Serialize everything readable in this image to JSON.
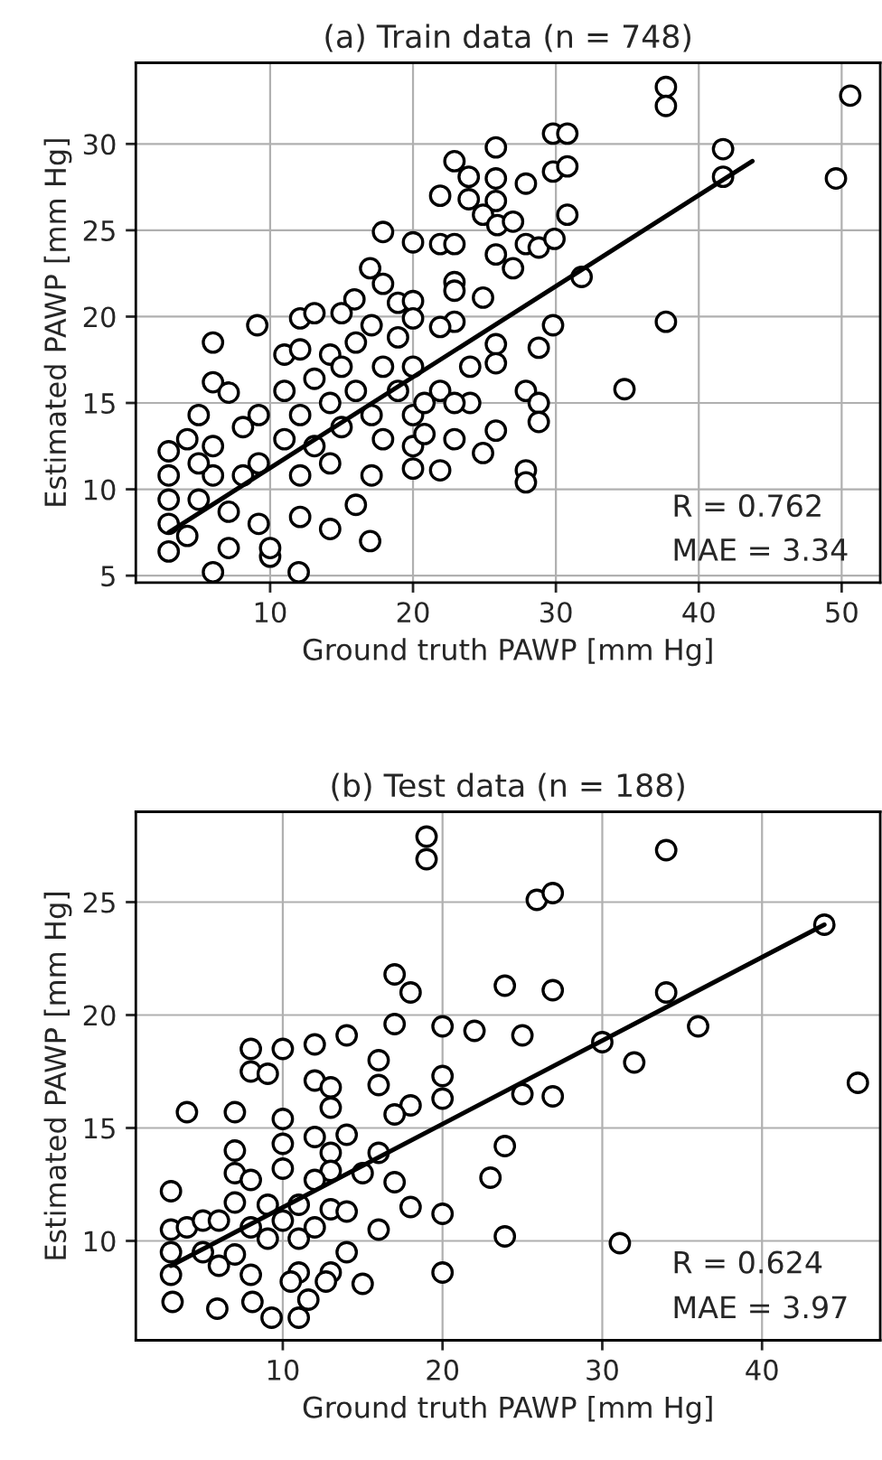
{
  "chart_data": [
    {
      "type": "scatter",
      "title": "(a) Train data (n = 748)",
      "xlabel": "Ground truth PAWP [mm Hg]",
      "ylabel": "Estimated PAWP [mm Hg]",
      "xlim": [
        0.6,
        52.7
      ],
      "ylim": [
        4.6,
        34.7
      ],
      "xticks": [
        10,
        20,
        30,
        40,
        50
      ],
      "yticks": [
        5,
        10,
        15,
        20,
        25,
        30
      ],
      "grid": true,
      "annotations": [
        "R = 0.762",
        "MAE = 3.34"
      ],
      "series": [
        {
          "marker": "circle",
          "color": "#ffffff",
          "x": [
            37.7,
            37.7,
            50.6,
            41.7,
            41.7,
            49.6,
            37.7,
            34.8,
            31.8,
            29.8,
            30.8,
            29.8,
            30.8,
            30.8,
            25.8,
            25.8,
            25.8,
            22.9,
            23.9,
            23.9,
            21.9,
            24.9,
            25.9,
            27.0,
            27.9,
            17.9,
            20.0,
            21.9,
            22.9,
            27.9,
            28.8,
            29.9,
            25.8,
            27.0,
            24.9,
            22.9,
            22.9,
            17.0,
            17.9,
            18.95,
            15.9,
            20.0,
            9.1,
            6.0,
            6.0,
            7.1,
            29.8,
            28.8,
            25.8,
            25.8,
            24.0,
            22.9,
            21.9,
            27.9,
            28.8,
            28.8,
            24.0,
            25.8,
            22.9,
            24.9,
            21.9,
            27.9,
            27.9,
            20.0,
            17.0,
            12.0,
            6.0,
            10.0,
            2.9,
            2.9,
            2.9,
            2.9,
            2.9,
            4.2,
            4.2,
            5.0,
            6.0,
            6.0,
            7.1,
            7.1,
            8.1,
            8.1,
            9.2,
            9.2,
            9.2,
            10.0,
            11.0,
            11.0,
            11.0,
            12.1,
            12.1,
            12.1,
            12.1,
            12.1,
            13.1,
            13.1,
            13.1,
            14.2,
            14.2,
            14.2,
            14.2,
            15.0,
            15.0,
            15.0,
            16.0,
            16.0,
            16.0,
            17.1,
            17.1,
            17.1,
            17.9,
            17.9,
            18.95,
            18.95,
            20.0,
            20.0,
            20.0,
            20.0,
            20.8,
            20.8,
            21.9,
            22.9,
            5.0,
            5.0
          ],
          "values": [
            33.3,
            32.2,
            32.8,
            29.7,
            28.1,
            28.0,
            19.7,
            15.8,
            22.3,
            30.6,
            30.6,
            28.4,
            28.7,
            25.9,
            29.8,
            28.0,
            26.7,
            29.0,
            28.1,
            26.8,
            27.0,
            25.9,
            25.3,
            25.5,
            27.7,
            24.9,
            24.3,
            24.2,
            24.2,
            24.2,
            24.0,
            24.5,
            23.6,
            22.8,
            21.1,
            22.0,
            21.5,
            22.8,
            21.9,
            20.8,
            21.0,
            20.9,
            19.5,
            18.5,
            16.2,
            15.6,
            19.5,
            18.2,
            18.4,
            17.3,
            17.1,
            19.7,
            19.4,
            15.7,
            15.0,
            13.9,
            15.0,
            13.4,
            12.9,
            12.1,
            11.1,
            11.1,
            10.4,
            11.2,
            7.0,
            5.2,
            5.2,
            6.1,
            12.2,
            10.8,
            9.4,
            8.0,
            6.4,
            12.9,
            7.3,
            9.4,
            12.5,
            10.8,
            8.7,
            6.6,
            13.6,
            10.8,
            14.3,
            11.5,
            8.0,
            6.6,
            17.8,
            15.7,
            12.9,
            19.9,
            18.1,
            14.3,
            10.8,
            8.4,
            20.2,
            16.4,
            12.5,
            17.8,
            15.0,
            11.5,
            7.7,
            20.2,
            17.1,
            13.6,
            9.1,
            18.5,
            15.7,
            19.5,
            14.3,
            10.8,
            17.1,
            12.9,
            18.8,
            15.7,
            19.9,
            17.1,
            14.3,
            12.5,
            15.0,
            13.2,
            15.7,
            15.0,
            14.3,
            11.5
          ]
        },
        {
          "type": "line",
          "color": "#000000",
          "x": [
            2.9,
            43.75
          ],
          "values": [
            7.5,
            29.0
          ]
        }
      ]
    },
    {
      "type": "scatter",
      "title": "(b) Test data (n = 188)",
      "xlabel": "Ground truth PAWP [mm Hg]",
      "ylabel": "Estimated PAWP [mm Hg]",
      "xlim": [
        0.8,
        47.4
      ],
      "ylim": [
        5.6,
        29.0
      ],
      "xticks": [
        10,
        20,
        30,
        40
      ],
      "yticks": [
        10,
        15,
        20,
        25
      ],
      "grid": true,
      "annotations": [
        "R = 0.624",
        "MAE = 3.97"
      ],
      "series": [
        {
          "marker": "circle",
          "color": "#ffffff",
          "x": [
            19.0,
            19.0,
            34.0,
            25.9,
            26.9,
            43.9,
            46.0,
            34.0,
            36.0,
            30.0,
            32.0,
            17.0,
            18.0,
            23.9,
            26.9,
            17.0,
            20.0,
            22.0,
            25.0,
            14.0,
            12.0,
            10.0,
            8.0,
            8.0,
            9.06,
            12.0,
            13.0,
            13.0,
            16.0,
            16.0,
            20.0,
            20.0,
            18.0,
            17.0,
            25.0,
            26.9,
            4.0,
            7.0,
            10.0,
            14.0,
            23.9,
            23.0,
            31.1,
            23.9,
            20.0,
            20.0,
            18.0,
            16.0,
            17.0,
            16.0,
            15.0,
            3.0,
            7.0,
            7.0,
            8.0,
            10.0,
            10.0,
            12.0,
            13.0,
            13.0,
            12.0,
            7.0,
            9.06,
            11.0,
            13.0,
            14.0,
            3.0,
            4.0,
            5.0,
            6.0,
            8.0,
            10.0,
            11.0,
            14.0,
            3.0,
            5.0,
            7.0,
            9.06,
            12.0,
            3.0,
            6.0,
            8.0,
            11.0,
            13.0,
            15.0,
            3.1,
            5.9,
            8.1,
            9.3,
            10.5,
            11.6,
            12.7,
            11.0
          ],
          "values": [
            27.9,
            26.9,
            27.3,
            25.1,
            25.4,
            24.0,
            17.0,
            21.0,
            19.5,
            18.8,
            17.9,
            21.8,
            21.0,
            21.3,
            21.1,
            19.6,
            19.5,
            19.3,
            19.1,
            19.1,
            18.7,
            18.5,
            18.5,
            17.5,
            17.4,
            17.1,
            16.8,
            15.9,
            18.0,
            16.9,
            17.3,
            16.3,
            16.0,
            15.6,
            16.5,
            16.4,
            15.7,
            15.7,
            15.4,
            14.7,
            14.2,
            12.8,
            9.9,
            10.2,
            11.2,
            8.6,
            11.5,
            10.5,
            12.6,
            13.9,
            13.0,
            12.2,
            14.0,
            13.0,
            12.7,
            14.3,
            13.2,
            14.6,
            13.9,
            13.1,
            12.7,
            11.7,
            11.6,
            11.6,
            11.4,
            11.3,
            10.5,
            10.6,
            10.9,
            10.9,
            10.6,
            10.9,
            10.1,
            9.5,
            9.5,
            9.5,
            9.4,
            10.1,
            10.6,
            8.5,
            8.9,
            8.5,
            8.6,
            8.6,
            8.1,
            7.3,
            7.0,
            7.3,
            6.6,
            8.2,
            7.4,
            8.2,
            6.6
          ]
        },
        {
          "type": "line",
          "color": "#000000",
          "x": [
            3.0,
            43.9
          ],
          "values": [
            8.9,
            24.0
          ]
        }
      ]
    }
  ]
}
